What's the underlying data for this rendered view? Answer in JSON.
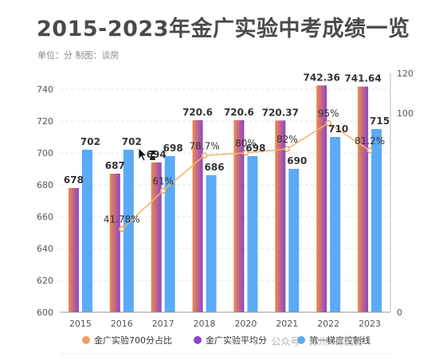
{
  "header": {
    "title": "2015-2023年金广实验中考成绩一览",
    "subtitle": "单位：分 制图：谈房"
  },
  "watermark": "公众号 · 郑州K哥说房",
  "chart_data": {
    "type": "bar",
    "categories": [
      "2015",
      "2016",
      "2017",
      "2018",
      "2020",
      "2021",
      "2022",
      "2023"
    ],
    "series": [
      {
        "name": "金广实验平均分",
        "type": "bar",
        "axis": "left",
        "values": [
          678,
          687,
          694,
          720.6,
          720.6,
          720.37,
          742.36,
          741.64
        ],
        "labels": [
          "678",
          "687",
          "694",
          "720.6",
          "720.6",
          "720.37",
          "742.36",
          "741.64"
        ]
      },
      {
        "name": "第一梯度控制线",
        "type": "bar",
        "axis": "left",
        "values": [
          702,
          702,
          698,
          686,
          698,
          690,
          710,
          715
        ],
        "labels": [
          "702",
          "702",
          "698",
          "686",
          "698",
          "690",
          "710",
          "715"
        ]
      },
      {
        "name": "金广实验700分占比",
        "type": "line",
        "axis": "right",
        "values": [
          null,
          41.78,
          61,
          78.7,
          80,
          82,
          95,
          81.2
        ],
        "labels": [
          "",
          "41.78%",
          "61%",
          "78.7%",
          "80%",
          "82%",
          "95%",
          "81.2%"
        ]
      }
    ],
    "legend_order": [
      "金广实验700分占比",
      "金广实验平均分",
      "第一梯度控制线"
    ],
    "ylim": [
      600,
      750
    ],
    "yticks": [
      "600",
      "620",
      "640",
      "660",
      "680",
      "700",
      "720",
      "740"
    ],
    "y2lim": [
      0,
      120
    ],
    "y2ticks": [
      "0",
      "100",
      "120"
    ],
    "legend_position": "bottom",
    "grid": true,
    "colors": {
      "avg_bar_top": "#8e44c8",
      "avg_bar_bottom": "#f08a4b",
      "control_bar": "#5aaaf5",
      "pct_line": "#f2b36b",
      "pct_marker": "#f0a060"
    }
  }
}
